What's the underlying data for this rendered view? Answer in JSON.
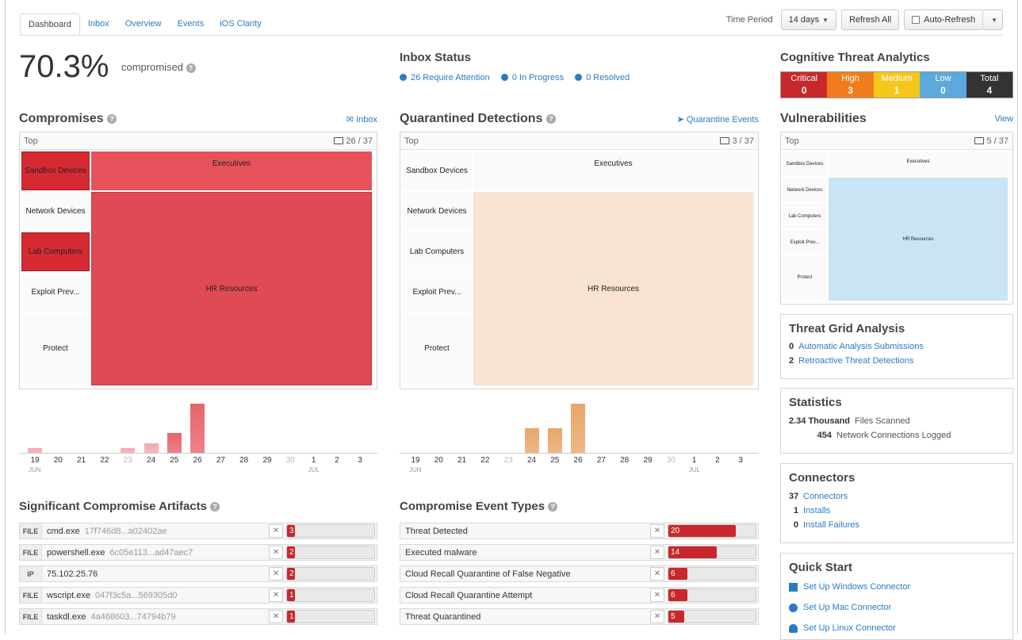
{
  "tabs": [
    "Dashboard",
    "Inbox",
    "Overview",
    "Events",
    "iOS Clarity"
  ],
  "top_controls": {
    "time_period_label": "Time Period",
    "time_period_value": "14 days",
    "refresh_all": "Refresh All",
    "auto_refresh": "Auto-Refresh"
  },
  "headline": {
    "percent": "70.3%",
    "label": "compromised"
  },
  "inbox_status": {
    "title": "Inbox Status",
    "items": [
      "26 Require Attention",
      "0 In Progress",
      "0 Resolved"
    ]
  },
  "cta": {
    "title": "Cognitive Threat Analytics",
    "cells": [
      {
        "label": "Critical",
        "value": "0",
        "color": "#c8282c"
      },
      {
        "label": "High",
        "value": "3",
        "color": "#f07c1e"
      },
      {
        "label": "Medium",
        "value": "1",
        "color": "#f5c71a"
      },
      {
        "label": "Low",
        "value": "0",
        "color": "#5da8dc"
      },
      {
        "label": "Total",
        "value": "4",
        "color": "#333333"
      }
    ]
  },
  "compromises": {
    "title": "Compromises",
    "link": "Inbox",
    "top_label": "Top",
    "count": "26 / 37",
    "groups": [
      "Sandbox Devices",
      "Network Devices",
      "Lab Computers",
      "Exploit Prev...",
      "Protect"
    ],
    "cells": [
      "Executives",
      "HR Resources"
    ]
  },
  "quarantined": {
    "title": "Quarantined Detections",
    "link": "Quarantine Events",
    "top_label": "Top",
    "count": "3 / 37",
    "groups": [
      "Sandbox Devices",
      "Network Devices",
      "Lab Computers",
      "Exploit Prev...",
      "Protect"
    ],
    "cells": [
      "Executives",
      "HR Resources"
    ]
  },
  "vulnerabilities": {
    "title": "Vulnerabilities",
    "link": "View",
    "top_label": "Top",
    "count": "5 / 37",
    "groups": [
      "Sandbox Devices",
      "Network Devices",
      "Lab Computers",
      "Exploit Prev...",
      "Protect"
    ],
    "cells": [
      "Executives",
      "HR Resources"
    ]
  },
  "chart_data": [
    {
      "type": "bar",
      "categories": [
        "19",
        "20",
        "21",
        "22",
        "23",
        "24",
        "25",
        "26",
        "27",
        "28",
        "29",
        "30",
        "1",
        "2",
        "3"
      ],
      "month_labels": [
        "JUN",
        "JUL"
      ],
      "values": [
        1,
        0,
        0,
        0,
        1,
        2,
        4,
        10,
        0,
        0,
        0,
        0,
        0,
        0,
        0
      ],
      "color": "#e8636b"
    },
    {
      "type": "bar",
      "categories": [
        "19",
        "20",
        "21",
        "22",
        "23",
        "24",
        "25",
        "26",
        "27",
        "28",
        "29",
        "30",
        "1",
        "2",
        "3"
      ],
      "month_labels": [
        "JUN",
        "JUL"
      ],
      "values": [
        0,
        0,
        0,
        0,
        0,
        3,
        3,
        6,
        0,
        0,
        0,
        0,
        0,
        0,
        0
      ],
      "color": "#e8a66a"
    }
  ],
  "artifacts": {
    "title": "Significant Compromise Artifacts",
    "rows": [
      {
        "tag": "FILE",
        "name": "cmd.exe",
        "hash": "17f746d8...a02402ae",
        "count": "3",
        "pct": 0.08
      },
      {
        "tag": "FILE",
        "name": "powershell.exe",
        "hash": "6c05e113...ad47aec7",
        "count": "2",
        "pct": 0.06
      },
      {
        "tag": "IP",
        "name": "75.102.25.76",
        "hash": "",
        "count": "2",
        "pct": 0.06
      },
      {
        "tag": "FILE",
        "name": "wscript.exe",
        "hash": "047f3c5a...569305d0",
        "count": "1",
        "pct": 0.04
      },
      {
        "tag": "FILE",
        "name": "taskdl.exe",
        "hash": "4a468603...74794b79",
        "count": "1",
        "pct": 0.04
      }
    ]
  },
  "event_types": {
    "title": "Compromise Event Types",
    "rows": [
      {
        "name": "Threat Detected",
        "count": "20",
        "pct": 0.77
      },
      {
        "name": "Executed malware",
        "count": "14",
        "pct": 0.55
      },
      {
        "name": "Cloud Recall Quarantine of False Negative",
        "count": "6",
        "pct": 0.22
      },
      {
        "name": "Cloud Recall Quarantine Attempt",
        "count": "6",
        "pct": 0.22
      },
      {
        "name": "Threat Quarantined",
        "count": "5",
        "pct": 0.18
      }
    ]
  },
  "threat_grid": {
    "title": "Threat Grid Analysis",
    "rows": [
      {
        "num": "0",
        "label": "Automatic Analysis Submissions"
      },
      {
        "num": "2",
        "label": "Retroactive Threat Detections"
      }
    ]
  },
  "statistics": {
    "title": "Statistics",
    "rows": [
      {
        "num": "2.34 Thousand",
        "label": "Files Scanned"
      },
      {
        "num": "454",
        "label": "Network Connections Logged"
      }
    ]
  },
  "connectors": {
    "title": "Connectors",
    "rows": [
      {
        "num": "37",
        "label": "Connectors"
      },
      {
        "num": "1",
        "label": "Installs"
      },
      {
        "num": "0",
        "label": "Install Failures"
      }
    ]
  },
  "quick_start": {
    "title": "Quick Start",
    "items": [
      "Set Up Windows Connector",
      "Set Up Mac Connector",
      "Set Up Linux Connector"
    ]
  }
}
